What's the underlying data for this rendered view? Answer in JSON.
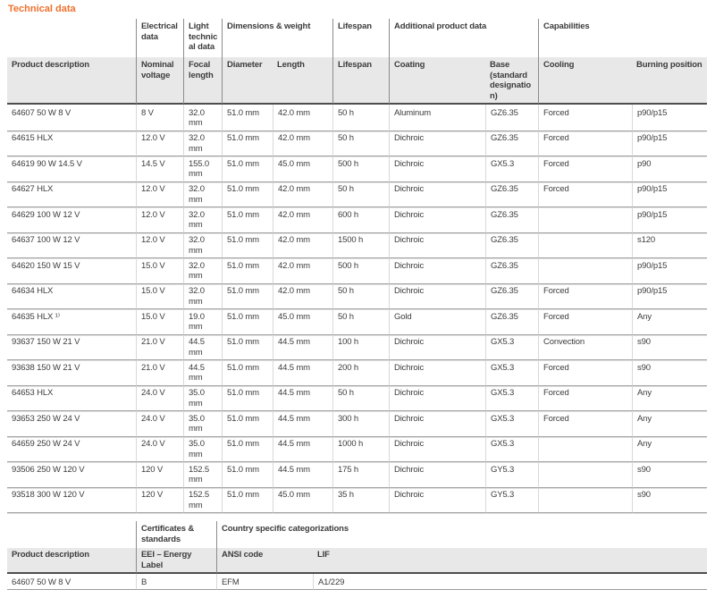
{
  "title": "Technical data",
  "colors": {
    "accent_orange": "#f0702d",
    "subheader_bg": "#e8e8e8",
    "dark_rule": "#4d4d4d",
    "row_rule": "#9e9e9e",
    "text": "#3c3c3c"
  },
  "main_table": {
    "groups": [
      {
        "label": ""
      },
      {
        "label": "Electrical data"
      },
      {
        "label": "Light technical data"
      },
      {
        "label": "Dimensions & weight"
      },
      {
        "label": "Lifespan"
      },
      {
        "label": "Additional product data"
      },
      {
        "label": "Capabilities"
      }
    ],
    "columns": [
      "Product description",
      "Nominal voltage",
      "Focal length",
      "Diameter",
      "Length",
      "Lifespan",
      "Coating",
      "Base (standard designation)",
      "Cooling",
      "Burning position"
    ],
    "rows": [
      [
        "64607 50 W 8 V",
        "8 V",
        "32.0 mm",
        "51.0 mm",
        "42.0 mm",
        "50 h",
        "Aluminum",
        "GZ6.35",
        "Forced",
        "p90/p15"
      ],
      [
        "64615 HLX",
        "12.0 V",
        "32.0 mm",
        "51.0 mm",
        "42.0 mm",
        "50 h",
        "Dichroic",
        "GZ6.35",
        "Forced",
        "p90/p15"
      ],
      [
        "64619 90 W 14.5 V",
        "14.5 V",
        "155.0 mm",
        "51.0 mm",
        "45.0 mm",
        "500 h",
        "Dichroic",
        "GX5.3",
        "Forced",
        "p90"
      ],
      [
        "64627 HLX",
        "12.0 V",
        "32.0 mm",
        "51.0 mm",
        "42.0 mm",
        "50 h",
        "Dichroic",
        "GZ6.35",
        "Forced",
        "p90/p15"
      ],
      [
        "64629 100 W 12 V",
        "12.0 V",
        "32.0 mm",
        "51.0 mm",
        "42.0 mm",
        "600 h",
        "Dichroic",
        "GZ6.35",
        "",
        "p90/p15"
      ],
      [
        "64637 100 W 12 V",
        "12.0 V",
        "32.0 mm",
        "51.0 mm",
        "42.0 mm",
        "1500 h",
        "Dichroic",
        "GZ6.35",
        "",
        "s120"
      ],
      [
        "64620 150 W 15 V",
        "15.0 V",
        "32.0 mm",
        "51.0 mm",
        "42.0 mm",
        "500 h",
        "Dichroic",
        "GZ6.35",
        "",
        "p90/p15"
      ],
      [
        "64634 HLX",
        "15.0 V",
        "32.0 mm",
        "51.0 mm",
        "42.0 mm",
        "50 h",
        "Dichroic",
        "GZ6.35",
        "Forced",
        "p90/p15"
      ],
      [
        "64635 HLX ¹⁾",
        "15.0 V",
        "19.0 mm",
        "51.0 mm",
        "45.0 mm",
        "50 h",
        "Gold",
        "GZ6.35",
        "Forced",
        "Any"
      ],
      [
        "93637 150 W 21 V",
        "21.0 V",
        "44.5 mm",
        "51.0 mm",
        "44.5 mm",
        "100 h",
        "Dichroic",
        "GX5.3",
        "Convection",
        "s90"
      ],
      [
        "93638 150 W 21 V",
        "21.0 V",
        "44.5 mm",
        "51.0 mm",
        "44.5 mm",
        "200 h",
        "Dichroic",
        "GX5.3",
        "Forced",
        "s90"
      ],
      [
        "64653 HLX",
        "24.0 V",
        "35.0 mm",
        "51.0 mm",
        "44.5 mm",
        "50 h",
        "Dichroic",
        "GX5.3",
        "Forced",
        "Any"
      ],
      [
        "93653 250 W 24 V",
        "24.0 V",
        "35.0 mm",
        "51.0 mm",
        "44.5 mm",
        "300 h",
        "Dichroic",
        "GX5.3",
        "Forced",
        "Any"
      ],
      [
        "64659 250 W 24 V",
        "24.0 V",
        "35.0 mm",
        "51.0 mm",
        "44.5 mm",
        "1000 h",
        "Dichroic",
        "GX5.3",
        "",
        "Any"
      ],
      [
        "93506 250 W 120 V",
        "120 V",
        "152.5 mm",
        "51.0 mm",
        "44.5 mm",
        "175 h",
        "Dichroic",
        "GY5.3",
        "",
        "s90"
      ],
      [
        "93518 300 W 120 V",
        "120 V",
        "152.5 mm",
        "51.0 mm",
        "45.0 mm",
        "35 h",
        "Dichroic",
        "GY5.3",
        "",
        "s90"
      ]
    ],
    "footnote_marker": "1)"
  },
  "certificates_table": {
    "groups": [
      {
        "label": ""
      },
      {
        "label": "Certificates & standards"
      },
      {
        "label": "Country specific categorizations"
      }
    ],
    "columns": [
      "Product description",
      "EEI – Energy Label",
      "ANSI code",
      "LIF"
    ],
    "rows": [
      [
        "64607 50 W 8 V",
        "B",
        "EFM",
        "A1/229"
      ]
    ]
  }
}
